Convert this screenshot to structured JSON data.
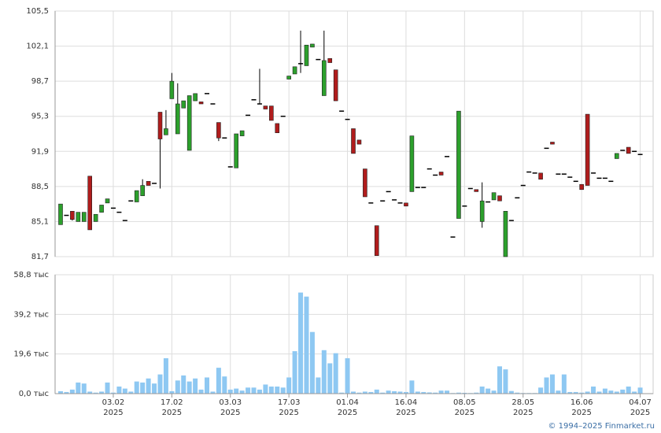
{
  "chart_data": [
    {
      "type": "candlestick",
      "open": [
        84.8,
        85.7,
        86.1,
        85.1,
        85.1,
        89.5,
        85.1,
        86.0,
        86.9,
        86.4,
        86.0,
        85.2,
        87.1,
        87.0,
        87.6,
        89.0,
        88.8,
        95.7,
        93.5,
        97.0,
        93.6,
        96.1,
        92.0,
        96.8,
        96.7,
        97.5,
        96.5,
        94.7,
        93.2,
        90.4,
        90.3,
        93.4,
        95.4,
        96.9,
        96.5,
        96.3,
        96.3,
        94.6,
        95.3,
        98.9,
        99.4,
        100.4,
        100.2,
        102.0,
        100.8,
        97.3,
        100.9,
        99.8,
        95.8,
        95.0,
        94.1,
        93.0,
        90.2,
        86.9,
        84.7,
        87.1,
        88.0,
        87.2,
        86.9,
        86.9,
        88.0,
        88.4,
        88.4,
        90.2,
        89.6,
        89.9,
        91.4,
        83.6,
        85.4,
        86.6,
        88.3,
        88.2,
        85.1,
        87.0,
        87.2,
        87.6,
        81.7,
        85.2,
        87.4,
        88.6,
        89.9,
        89.8,
        89.8,
        92.2,
        92.8,
        89.7,
        89.7,
        89.4,
        89.0,
        88.7,
        95.5,
        89.8,
        89.3,
        89.3,
        89.0,
        91.2,
        92.0,
        92.3,
        91.9,
        91.6
      ],
      "high": [
        86.8,
        85.7,
        86.1,
        86.0,
        86.0,
        89.5,
        85.8,
        86.7,
        87.3,
        86.4,
        86.0,
        85.2,
        87.1,
        88.1,
        89.2,
        89.0,
        88.8,
        95.7,
        95.9,
        99.5,
        98.5,
        96.8,
        97.3,
        97.5,
        96.7,
        97.5,
        96.5,
        94.7,
        93.2,
        90.4,
        93.6,
        93.9,
        95.4,
        96.9,
        99.9,
        96.3,
        96.3,
        94.6,
        95.3,
        99.2,
        100.1,
        103.6,
        102.2,
        102.3,
        100.8,
        103.6,
        100.9,
        99.8,
        95.8,
        95.0,
        94.1,
        93.0,
        90.2,
        86.9,
        84.7,
        87.1,
        88.0,
        87.2,
        86.9,
        86.9,
        93.4,
        88.4,
        88.4,
        90.2,
        89.6,
        89.9,
        91.4,
        83.6,
        95.8,
        86.6,
        88.3,
        88.2,
        88.9,
        87.0,
        87.9,
        87.6,
        86.1,
        85.2,
        87.4,
        88.6,
        89.9,
        89.8,
        89.8,
        92.2,
        92.8,
        89.7,
        89.7,
        89.4,
        89.0,
        88.7,
        95.5,
        89.8,
        89.3,
        89.3,
        89.0,
        91.7,
        92.0,
        92.3,
        91.9,
        91.6
      ],
      "low": [
        84.8,
        85.7,
        85.2,
        85.1,
        85.1,
        84.3,
        85.1,
        86.0,
        86.9,
        86.4,
        86.0,
        85.2,
        87.1,
        87.0,
        87.6,
        88.6,
        88.8,
        88.3,
        93.5,
        97.0,
        93.6,
        96.1,
        92.0,
        96.8,
        96.5,
        97.5,
        96.5,
        92.9,
        93.2,
        90.4,
        90.3,
        93.4,
        95.4,
        96.9,
        96.5,
        96.0,
        94.9,
        93.7,
        95.3,
        98.9,
        99.4,
        99.5,
        100.2,
        102.0,
        100.8,
        97.3,
        100.5,
        96.8,
        95.8,
        95.0,
        91.7,
        92.6,
        87.5,
        86.9,
        81.8,
        87.1,
        88.0,
        87.2,
        86.9,
        86.6,
        88.0,
        88.4,
        88.4,
        90.2,
        89.6,
        89.6,
        91.4,
        83.6,
        85.4,
        86.6,
        88.3,
        88.0,
        84.5,
        87.0,
        87.2,
        87.1,
        81.7,
        85.2,
        87.4,
        88.6,
        89.9,
        89.8,
        89.2,
        92.2,
        92.6,
        89.7,
        89.7,
        89.4,
        89.0,
        88.2,
        88.6,
        89.8,
        89.3,
        89.3,
        89.0,
        91.2,
        92.0,
        91.7,
        91.9,
        91.6
      ],
      "close": [
        86.8,
        85.7,
        85.3,
        86.0,
        86.0,
        84.3,
        85.8,
        86.7,
        87.3,
        86.4,
        86.0,
        85.2,
        87.1,
        88.1,
        88.6,
        88.6,
        88.8,
        93.1,
        94.1,
        98.7,
        96.5,
        96.8,
        97.3,
        97.5,
        96.5,
        97.5,
        96.5,
        93.2,
        93.2,
        90.4,
        93.6,
        93.9,
        95.4,
        96.9,
        96.5,
        96.0,
        94.9,
        93.7,
        95.3,
        99.2,
        100.1,
        100.4,
        102.2,
        102.3,
        100.8,
        100.7,
        100.5,
        96.8,
        95.8,
        95.0,
        91.7,
        92.6,
        87.5,
        86.9,
        81.8,
        87.1,
        88.0,
        87.2,
        86.9,
        86.6,
        93.4,
        88.4,
        88.4,
        90.2,
        89.6,
        89.6,
        91.4,
        83.6,
        95.8,
        86.6,
        88.3,
        88.0,
        87.1,
        87.0,
        87.9,
        87.1,
        86.1,
        85.2,
        87.4,
        88.6,
        89.9,
        89.8,
        89.2,
        92.2,
        92.6,
        89.7,
        89.7,
        89.4,
        89.0,
        88.2,
        88.6,
        89.8,
        89.3,
        89.3,
        89.0,
        91.7,
        92.0,
        91.7,
        91.9,
        91.6
      ],
      "up_color": "#2ca02c",
      "down_color": "#b01c1c",
      "flat_color": "#000000",
      "ylim": [
        81.7,
        105.5
      ],
      "yticks": [
        {
          "value": 81.7,
          "label": "81,7"
        },
        {
          "value": 85.1,
          "label": "85,1"
        },
        {
          "value": 88.5,
          "label": "88,5"
        },
        {
          "value": 91.9,
          "label": "91,9"
        },
        {
          "value": 95.3,
          "label": "95,3"
        },
        {
          "value": 98.7,
          "label": "98,7"
        },
        {
          "value": 102.1,
          "label": "102,1"
        },
        {
          "value": 105.5,
          "label": "105,5"
        }
      ],
      "grid": true
    },
    {
      "type": "bar",
      "categories": [
        null,
        null,
        null,
        null,
        null,
        null,
        null,
        null,
        null,
        "03.02\n2025",
        null,
        null,
        null,
        null,
        null,
        null,
        null,
        null,
        null,
        "17.02\n2025",
        null,
        null,
        null,
        null,
        null,
        null,
        null,
        null,
        null,
        "03.03\n2025",
        null,
        null,
        null,
        null,
        null,
        null,
        null,
        null,
        null,
        "17.03\n2025",
        null,
        null,
        null,
        null,
        null,
        null,
        null,
        null,
        null,
        "01.04\n2025",
        null,
        null,
        null,
        null,
        null,
        null,
        null,
        null,
        null,
        "16.04\n2025",
        null,
        null,
        null,
        null,
        null,
        null,
        null,
        null,
        null,
        "08.05\n2025",
        null,
        null,
        null,
        null,
        null,
        null,
        null,
        null,
        null,
        "28.05\n2025",
        null,
        null,
        null,
        null,
        null,
        null,
        null,
        null,
        null,
        "16.06\n2025",
        null,
        null,
        null,
        null,
        null,
        null,
        null,
        null,
        null,
        "04.07\n2025"
      ],
      "values": [
        1.2,
        0.8,
        2,
        5.5,
        5,
        1,
        0.5,
        1,
        5.5,
        0.5,
        3.5,
        2.5,
        1,
        6,
        5.5,
        7.5,
        5,
        9.5,
        17.5,
        1.2,
        6.5,
        9,
        6,
        7.5,
        2,
        8,
        1,
        12.8,
        8.5,
        2,
        2.5,
        1.5,
        3,
        3,
        2,
        4.5,
        3.5,
        3.5,
        3,
        8,
        21,
        50,
        48,
        30.5,
        8,
        21.5,
        15,
        20,
        0.5,
        17.5,
        1,
        0.5,
        1,
        0.8,
        2,
        0.5,
        1.5,
        1.2,
        1,
        0.8,
        6.5,
        1,
        0.8,
        0.6,
        0.5,
        1.5,
        1.5,
        0.3,
        0.5,
        0.4,
        0.3,
        0.5,
        3.5,
        2.5,
        1.5,
        13.5,
        12,
        1.3,
        0.5,
        0.3,
        0.3,
        0.3,
        3,
        8,
        9.5,
        1.5,
        9.5,
        0.8,
        0.8,
        0.5,
        1,
        3.5,
        1,
        2.5,
        1.5,
        1,
        2,
        3.5,
        1,
        3
      ],
      "color": "#8ec8f2",
      "ylim": [
        0,
        58.8
      ],
      "yticks": [
        {
          "value": 0,
          "label": "0,0 тыс"
        },
        {
          "value": 19.6,
          "label": "19,6 тыс"
        },
        {
          "value": 39.2,
          "label": "39,2 тыс"
        },
        {
          "value": 58.8,
          "label": "58,8 тыс"
        }
      ],
      "grid": true
    }
  ],
  "footer": "© 1994–2025 Finmarket.ru"
}
